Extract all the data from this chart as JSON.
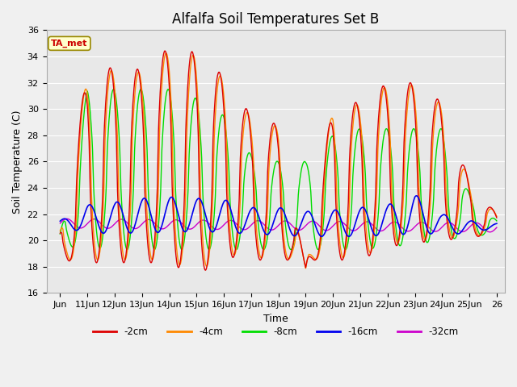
{
  "title": "Alfalfa Soil Temperatures Set B",
  "xlabel": "Time",
  "ylabel": "Soil Temperature (C)",
  "ylim": [
    16,
    36
  ],
  "colors": {
    "-2cm": "#dd0000",
    "-4cm": "#ff8800",
    "-8cm": "#00dd00",
    "-16cm": "#0000ee",
    "-32cm": "#cc00cc"
  },
  "legend_labels": [
    "-2cm",
    "-4cm",
    "-8cm",
    "-16cm",
    "-32cm"
  ],
  "annotation_text": "TA_met",
  "annotation_bg": "#ffffcc",
  "annotation_border": "#998800",
  "plot_bg_color": "#e8e8e8",
  "fig_bg_color": "#f0f0f0",
  "title_fontsize": 12,
  "axis_fontsize": 9,
  "tick_fontsize": 8,
  "xtick_labels": [
    "Jun",
    "11Jun",
    "12Jun",
    "13Jun",
    "14Jun",
    "15Jun",
    "16Jun",
    "17Jun",
    "18Jun",
    "19Jun",
    "20Jun",
    "21Jun",
    "22Jun",
    "23Jun",
    "24Jun",
    "25Jun",
    "26"
  ]
}
